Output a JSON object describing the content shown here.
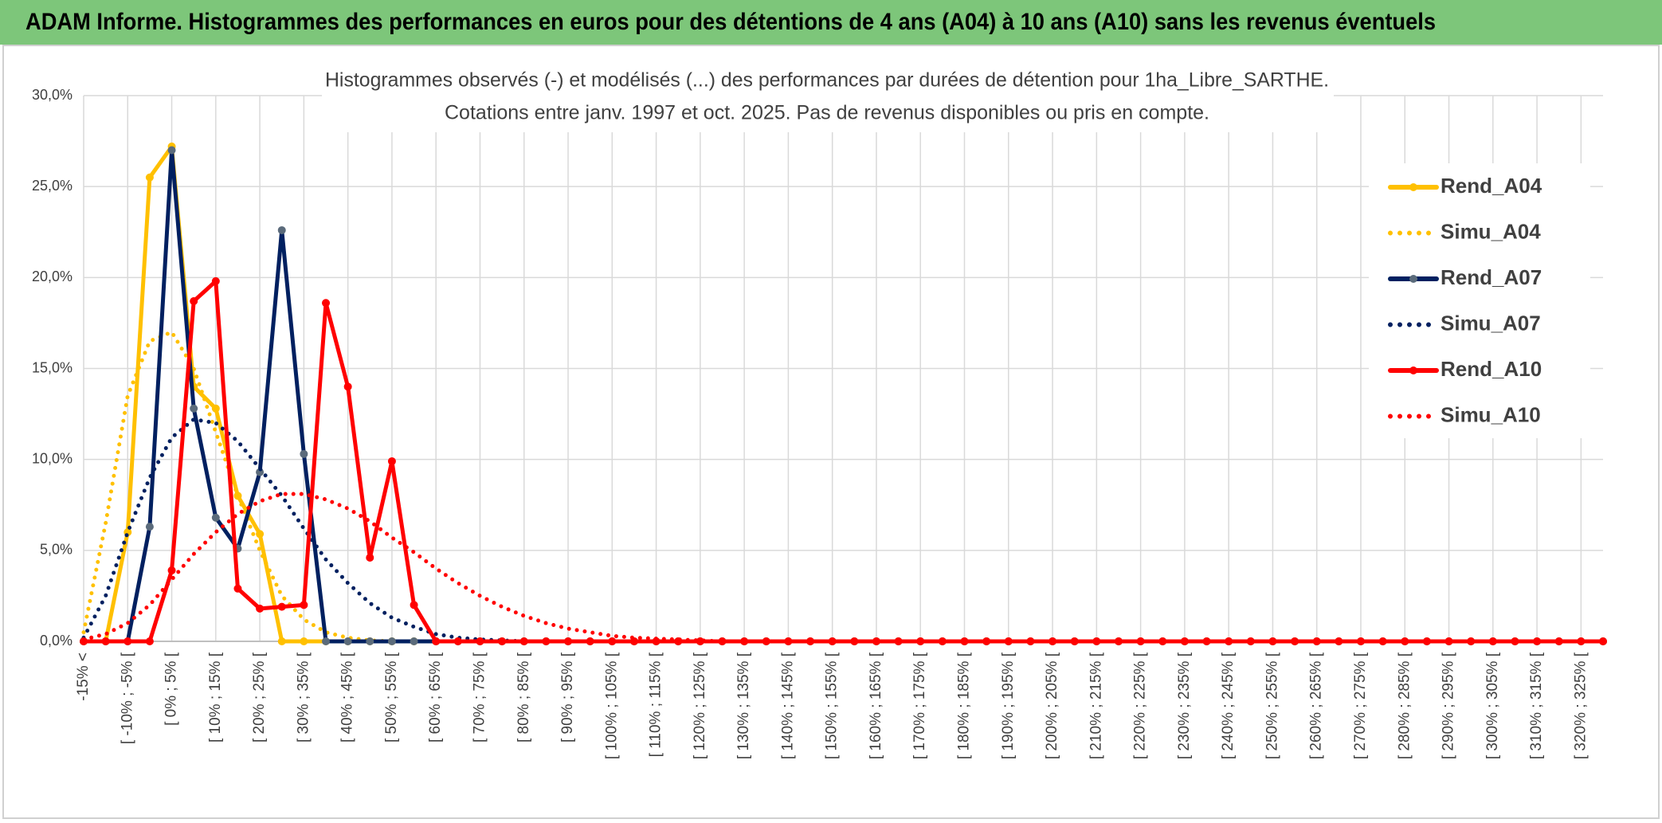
{
  "header": {
    "title": "ADAM Informe. Histogrammes des performances en euros pour des détentions de 4 ans (A04) à 10 ans (A10) sans les revenus éventuels"
  },
  "chart_data": {
    "type": "line",
    "title": "Histogrammes observés (-) et modélisés (...) des performances par durées de détention pour 1ha_Libre_SARTHE.",
    "subtitle": "Cotations entre janv. 1997 et oct. 2025. Pas de revenus disponibles ou pris en compte.",
    "categories": [
      "-15% <",
      null,
      "[ -10% ; -5% [",
      null,
      "[ 0% ; 5% [",
      null,
      "[ 10% ; 15% [",
      null,
      "[ 20% ; 25% [",
      null,
      "[ 30% ; 35% [",
      null,
      "[ 40% ; 45% [",
      null,
      "[ 50% ; 55% [",
      null,
      "[ 60% ; 65% [",
      null,
      "[ 70% ; 75% [",
      null,
      "[ 80% ; 85% [",
      null,
      "[ 90% ; 95% [",
      null,
      "[ 100% ; 105% [",
      null,
      "[ 110% ; 115% [",
      null,
      "[ 120% ; 125% [",
      null,
      "[ 130% ; 135% [",
      null,
      "[ 140% ; 145% [",
      null,
      "[ 150% ; 155% [",
      null,
      "[ 160% ; 165% [",
      null,
      "[ 170% ; 175% [",
      null,
      "[ 180% ; 185% [",
      null,
      "[ 190% ; 195% [",
      null,
      "[ 200% ; 205% [",
      null,
      "[ 210% ; 215% [",
      null,
      "[ 220% ; 225% [",
      null,
      "[ 230% ; 235% [",
      null,
      "[ 240% ; 245% [",
      null,
      "[ 250% ; 255% [",
      null,
      "[ 260% ; 265% [",
      null,
      "[ 270% ; 275% [",
      null,
      "[ 280% ; 285% [",
      null,
      "[ 290% ; 295% [",
      null,
      "[ 300% ; 305% [",
      null,
      "[ 310% ; 315% [",
      null,
      "[ 320% ; 325% [",
      null
    ],
    "series": [
      {
        "name": "Rend_A04",
        "color": "#ffc000",
        "dash": "solid",
        "markers": true,
        "marker_color": "#ffc000",
        "values": [
          0,
          0,
          6,
          25.5,
          27.2,
          14,
          12.8,
          8,
          5.9,
          0,
          0,
          0,
          0,
          0,
          0,
          0,
          0,
          0,
          0,
          0,
          0,
          0,
          0,
          0,
          0,
          0,
          0,
          0,
          0,
          0,
          0,
          0,
          0,
          0,
          0,
          0,
          0,
          0,
          0,
          0,
          0,
          0,
          0,
          0,
          0,
          0,
          0,
          0,
          0,
          0,
          0,
          0,
          0,
          0,
          0,
          0,
          0,
          0,
          0,
          0,
          0,
          0,
          0,
          0,
          0,
          0,
          0,
          0,
          0,
          0
        ]
      },
      {
        "name": "Simu_A04",
        "color": "#ffc000",
        "dash": "dotted",
        "markers": false,
        "values": [
          0.5,
          6.5,
          13.5,
          16.5,
          17,
          15,
          11.5,
          8,
          5,
          2.5,
          1.2,
          0.5,
          0.2,
          0.05,
          0,
          0,
          0,
          0,
          0,
          0,
          0,
          0,
          0,
          0,
          0,
          0,
          0,
          0,
          0,
          0,
          0,
          0,
          0,
          0,
          0,
          0,
          0,
          0,
          0,
          0,
          0,
          0,
          0,
          0,
          0,
          0,
          0,
          0,
          0,
          0,
          0,
          0,
          0,
          0,
          0,
          0,
          0,
          0,
          0,
          0,
          0,
          0,
          0,
          0,
          0,
          0,
          0,
          0,
          0,
          0
        ]
      },
      {
        "name": "Rend_A07",
        "color": "#002060",
        "dash": "solid",
        "markers": true,
        "marker_color": "#5b6b7b",
        "values": [
          0,
          0,
          0,
          6.3,
          27,
          12.8,
          6.8,
          5.1,
          9.3,
          22.6,
          10.3,
          0,
          0,
          0,
          0,
          0,
          0,
          0,
          0,
          0,
          0,
          0,
          0,
          0,
          0,
          0,
          0,
          0,
          0,
          0,
          0,
          0,
          0,
          0,
          0,
          0,
          0,
          0,
          0,
          0,
          0,
          0,
          0,
          0,
          0,
          0,
          0,
          0,
          0,
          0,
          0,
          0,
          0,
          0,
          0,
          0,
          0,
          0,
          0,
          0,
          0,
          0,
          0,
          0,
          0,
          0,
          0,
          0,
          0,
          0
        ]
      },
      {
        "name": "Simu_A07",
        "color": "#002060",
        "dash": "dotted",
        "markers": false,
        "values": [
          0.2,
          2.5,
          6,
          9,
          11.2,
          12.2,
          12,
          11,
          9.5,
          8,
          6.2,
          4.5,
          3.2,
          2.1,
          1.3,
          0.8,
          0.4,
          0.2,
          0.1,
          0.05,
          0,
          0,
          0,
          0,
          0,
          0,
          0,
          0,
          0,
          0,
          0,
          0,
          0,
          0,
          0,
          0,
          0,
          0,
          0,
          0,
          0,
          0,
          0,
          0,
          0,
          0,
          0,
          0,
          0,
          0,
          0,
          0,
          0,
          0,
          0,
          0,
          0,
          0,
          0,
          0,
          0,
          0,
          0,
          0,
          0,
          0,
          0,
          0,
          0,
          0
        ]
      },
      {
        "name": "Rend_A10",
        "color": "#ff0000",
        "dash": "solid",
        "markers": true,
        "marker_color": "#ff0000",
        "values": [
          0,
          0,
          0,
          0,
          3.9,
          18.7,
          19.8,
          2.9,
          1.8,
          1.9,
          2,
          18.6,
          14,
          4.6,
          9.9,
          2,
          0,
          0,
          0,
          0,
          0,
          0,
          0,
          0,
          0,
          0,
          0,
          0,
          0,
          0,
          0,
          0,
          0,
          0,
          0,
          0,
          0,
          0,
          0,
          0,
          0,
          0,
          0,
          0,
          0,
          0,
          0,
          0,
          0,
          0,
          0,
          0,
          0,
          0,
          0,
          0,
          0,
          0,
          0,
          0,
          0,
          0,
          0,
          0,
          0,
          0,
          0,
          0,
          0,
          0
        ]
      },
      {
        "name": "Simu_A10",
        "color": "#ff0000",
        "dash": "dotted",
        "markers": false,
        "values": [
          0.1,
          0.4,
          1,
          2,
          3.4,
          4.8,
          6,
          7,
          7.7,
          8.1,
          8.1,
          7.8,
          7.3,
          6.6,
          5.7,
          4.9,
          4,
          3.2,
          2.5,
          1.9,
          1.4,
          1,
          0.7,
          0.5,
          0.3,
          0.2,
          0.15,
          0.1,
          0.05,
          0,
          0,
          0,
          0,
          0,
          0,
          0,
          0,
          0,
          0,
          0,
          0,
          0,
          0,
          0,
          0,
          0,
          0,
          0,
          0,
          0,
          0,
          0,
          0,
          0,
          0,
          0,
          0,
          0,
          0,
          0,
          0,
          0,
          0,
          0,
          0,
          0,
          0,
          0,
          0,
          0
        ]
      }
    ],
    "ylim": [
      0,
      30
    ],
    "yticks": [
      {
        "value": 0,
        "label": "0,0%"
      },
      {
        "value": 5,
        "label": "5,0%"
      },
      {
        "value": 10,
        "label": "10,0%"
      },
      {
        "value": 15,
        "label": "15,0%"
      },
      {
        "value": 20,
        "label": "20,0%"
      },
      {
        "value": 25,
        "label": "25,0%"
      },
      {
        "value": 30,
        "label": "30,0%"
      }
    ],
    "grid": true,
    "legend": "right"
  }
}
